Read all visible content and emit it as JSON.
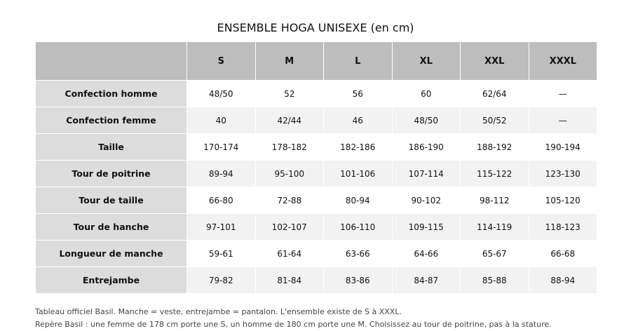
{
  "title": "ENSEMBLE HOGA UNISEXE (en cm)",
  "table": {
    "corner": "",
    "sizes": [
      "S",
      "M",
      "L",
      "XL",
      "XXL",
      "XXXL"
    ],
    "rows": [
      {
        "label": "Confection homme",
        "values": [
          "48/50",
          "52",
          "56",
          "60",
          "62/64",
          "—"
        ]
      },
      {
        "label": "Confection femme",
        "values": [
          "40",
          "42/44",
          "46",
          "48/50",
          "50/52",
          "—"
        ]
      },
      {
        "label": "Taille",
        "values": [
          "170-174",
          "178-182",
          "182-186",
          "186-190",
          "188-192",
          "190-194"
        ]
      },
      {
        "label": "Tour de poitrine",
        "values": [
          "89-94",
          "95-100",
          "101-106",
          "107-114",
          "115-122",
          "123-130"
        ]
      },
      {
        "label": "Tour de taille",
        "values": [
          "66-80",
          "72-88",
          "80-94",
          "90-102",
          "98-112",
          "105-120"
        ]
      },
      {
        "label": "Tour de hanche",
        "values": [
          "97-101",
          "102-107",
          "106-110",
          "109-115",
          "114-119",
          "118-123"
        ]
      },
      {
        "label": "Longueur de manche",
        "values": [
          "59-61",
          "61-64",
          "63-66",
          "64-66",
          "65-67",
          "66-68"
        ]
      },
      {
        "label": "Entrejambe",
        "values": [
          "79-82",
          "81-84",
          "83-86",
          "84-87",
          "85-88",
          "88-94"
        ]
      }
    ]
  },
  "notes": [
    "Tableau officiel Basil. Manche = veste, entrejambe = pantalon. L'ensemble existe de S à XXXL.",
    "Repère Basil : une femme de 178 cm porte une S, un homme de 180 cm porte une M. Choisissez au tour de poitrine, pas à la stature."
  ],
  "colors": {
    "header_bg": "#bdbdbd",
    "label_bg": "#dcdcdc",
    "row_alt_bg": "#f2f2f2"
  }
}
